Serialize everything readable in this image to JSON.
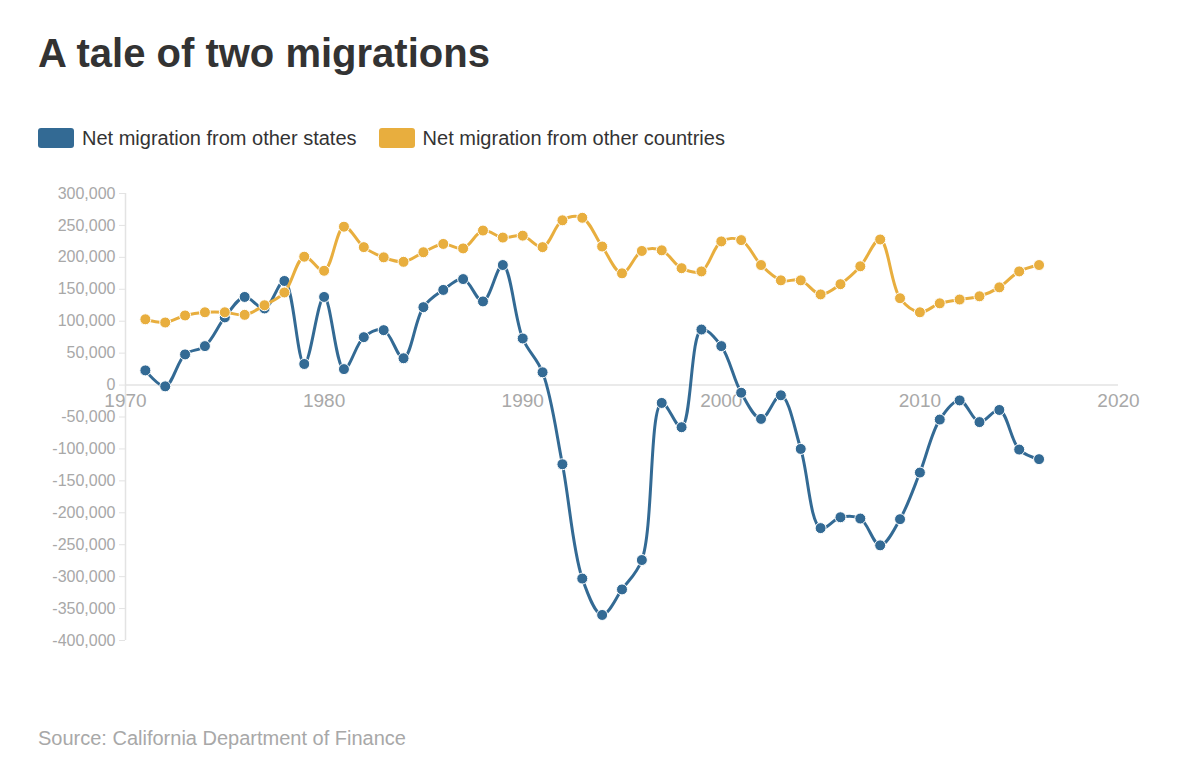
{
  "chart_data": {
    "type": "line",
    "title": "A tale of two migrations",
    "caption": "Source: California Department of Finance",
    "x": [
      1971,
      1972,
      1973,
      1974,
      1975,
      1976,
      1977,
      1978,
      1979,
      1980,
      1981,
      1982,
      1983,
      1984,
      1985,
      1986,
      1987,
      1988,
      1989,
      1990,
      1991,
      1992,
      1993,
      1994,
      1995,
      1996,
      1997,
      1998,
      1999,
      2000,
      2001,
      2002,
      2003,
      2004,
      2005,
      2006,
      2007,
      2008,
      2009,
      2010,
      2011,
      2012,
      2013,
      2014,
      2015,
      2016
    ],
    "series": [
      {
        "name": "Net migration from other states",
        "color": "#336a94",
        "values": [
          23000,
          -2000,
          48000,
          61000,
          106000,
          138000,
          120000,
          163000,
          33000,
          138000,
          25000,
          75000,
          86000,
          42000,
          122000,
          149000,
          166000,
          131000,
          188000,
          73000,
          20000,
          -124000,
          -303000,
          -360000,
          -320000,
          -274000,
          -28000,
          -66000,
          87000,
          61000,
          -12000,
          -53000,
          -16000,
          -100000,
          -224000,
          -207000,
          -209000,
          -251000,
          -210000,
          -137000,
          -54000,
          -24000,
          -58000,
          -39000,
          -101000,
          -116000
        ]
      },
      {
        "name": "Net migration from other countries",
        "color": "#e8ae3e",
        "values": [
          103000,
          98000,
          109000,
          114000,
          114000,
          110000,
          125000,
          145000,
          201000,
          179000,
          248000,
          216000,
          200000,
          193000,
          208000,
          221000,
          214000,
          242000,
          231000,
          234000,
          216000,
          258000,
          262000,
          217000,
          175000,
          210000,
          211000,
          183000,
          178000,
          225000,
          227000,
          188000,
          164000,
          164000,
          142000,
          158000,
          186000,
          228000,
          136000,
          114000,
          128000,
          134000,
          139000,
          153000,
          178000,
          188000
        ]
      }
    ],
    "xlim": [
      1970,
      2020
    ],
    "xticks": [
      1970,
      1980,
      1990,
      2000,
      2010,
      2020
    ],
    "ylim": [
      -400000,
      300000
    ],
    "yticks": [
      {
        "value": 300000,
        "label": "300,000"
      },
      {
        "value": 250000,
        "label": "250,000"
      },
      {
        "value": 200000,
        "label": "200,000"
      },
      {
        "value": 150000,
        "label": "150,000"
      },
      {
        "value": 100000,
        "label": "100,000"
      },
      {
        "value": 50000,
        "label": "50,000"
      },
      0,
      {
        "value": -50000,
        "label": "-50,000"
      },
      {
        "value": -100000,
        "label": "-100,000"
      },
      {
        "value": -150000,
        "label": "-150,000"
      },
      {
        "value": -200000,
        "label": "-200,000"
      },
      {
        "value": -250000,
        "label": "-250,000"
      },
      {
        "value": -300000,
        "label": "-300,000"
      },
      {
        "value": -350000,
        "label": "-350,000"
      },
      {
        "value": -400000,
        "label": "-400,000"
      }
    ],
    "grid": false,
    "legend": "top-left",
    "marker": "circle",
    "line_style": "solid"
  }
}
